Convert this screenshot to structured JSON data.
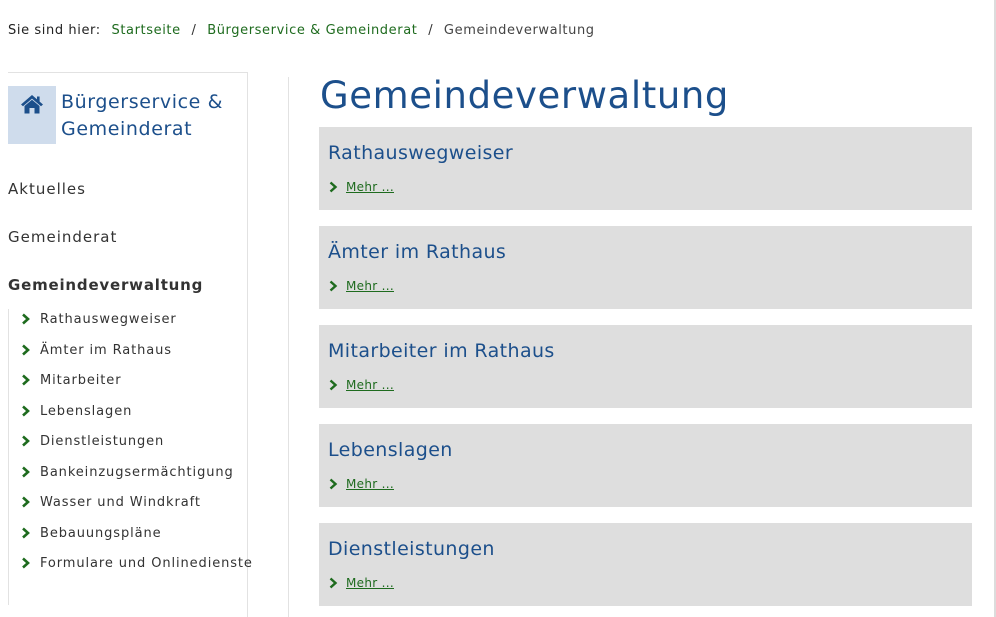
{
  "breadcrumb": {
    "lead": "Sie sind hier:",
    "items": [
      "Startseite",
      "Bürgerservice & Gemeinderat"
    ],
    "current": "Gemeindeverwaltung",
    "separator": "/"
  },
  "sidebar": {
    "title": "Bürgerservice & Gemeinderat",
    "icon": "home-icon",
    "links": [
      "Aktuelles",
      "Gemeinderat",
      "Gemeindeverwaltung"
    ],
    "active_link": "Gemeindeverwaltung",
    "subitems": [
      "Rathauswegweiser",
      "Ämter im Rathaus",
      "Mitarbeiter",
      "Lebenslagen",
      "Dienstleistungen",
      "Bankeinzugsermächtigung",
      "Wasser und Windkraft",
      "Bebauungspläne",
      "Formulare und Onlinedienste"
    ]
  },
  "main": {
    "title": "Gemeindeverwaltung",
    "cards": [
      {
        "title": "Rathauswegweiser",
        "more": "Mehr ..."
      },
      {
        "title": "Ämter im Rathaus",
        "more": "Mehr ..."
      },
      {
        "title": "Mitarbeiter im Rathaus",
        "more": "Mehr ..."
      },
      {
        "title": "Lebenslagen",
        "more": "Mehr ..."
      },
      {
        "title": "Dienstleistungen",
        "more": "Mehr ..."
      }
    ]
  },
  "colors": {
    "accent_blue": "#1c4f8b",
    "link_green": "#1e6b1e",
    "card_bg": "#dedede",
    "home_box_bg": "#cfdcec"
  }
}
